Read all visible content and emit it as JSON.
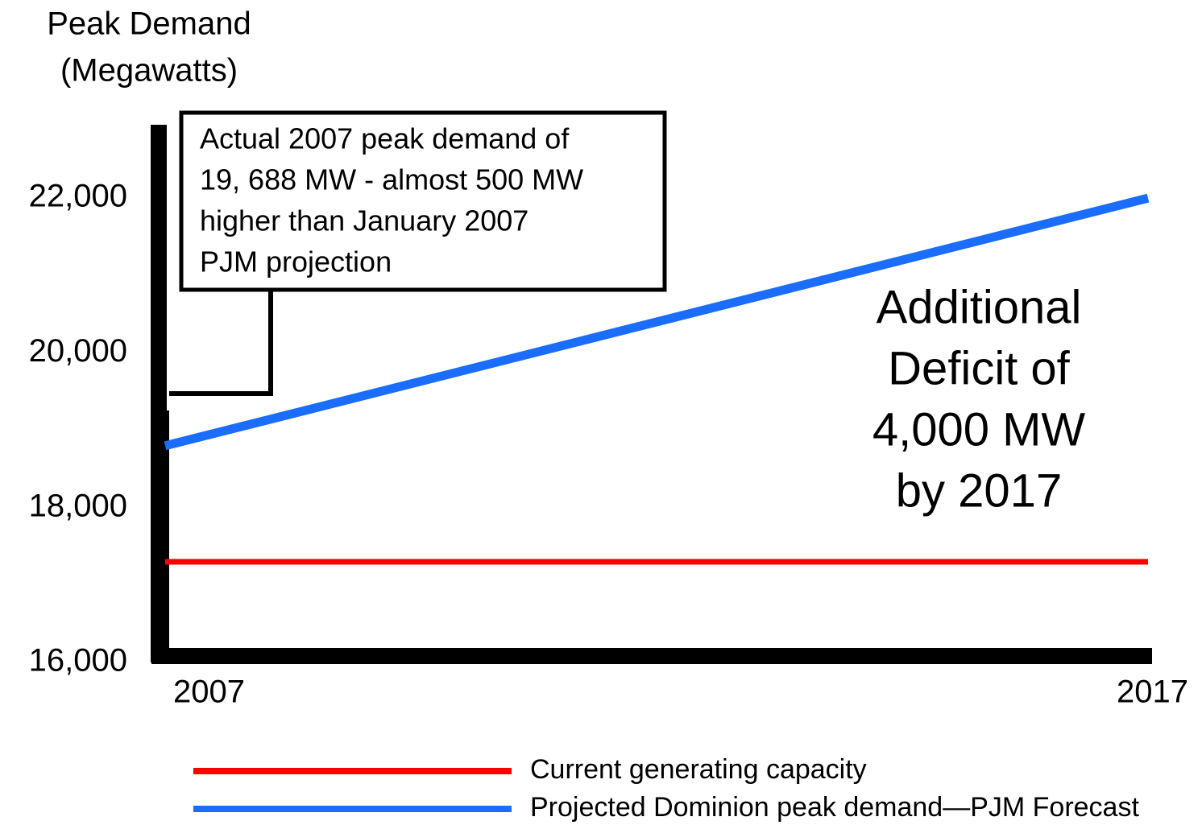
{
  "chart_data": {
    "type": "line",
    "y_axis_label": [
      "Peak Demand",
      "(Megawatts)"
    ],
    "x": [
      2007,
      2017
    ],
    "xlim": [
      2007,
      2017
    ],
    "xticks": [
      2007,
      2017
    ],
    "ylim": [
      16000,
      23000
    ],
    "yticks": [
      {
        "value": 16000,
        "label": "16,000"
      },
      {
        "value": 18000,
        "label": "18,000"
      },
      {
        "value": 20000,
        "label": "20,000"
      },
      {
        "value": 22000,
        "label": "22,000"
      }
    ],
    "series": [
      {
        "name": "Current generating capacity",
        "color": "#ff0000",
        "values": [
          17300,
          17300
        ]
      },
      {
        "name": "Projected Dominion peak demand—PJM Forecast",
        "color": "#1a6dff",
        "values": [
          18800,
          22000
        ]
      }
    ],
    "annotations": [
      {
        "lines": [
          "Actual 2007 peak demand of",
          "19, 688 MW - almost 500 MW",
          "higher than January 2007",
          "PJM projection"
        ]
      },
      {
        "lines": [
          "Additional",
          "Deficit of",
          "4,000 MW",
          "by 2017"
        ]
      }
    ],
    "legend": "bottom"
  }
}
